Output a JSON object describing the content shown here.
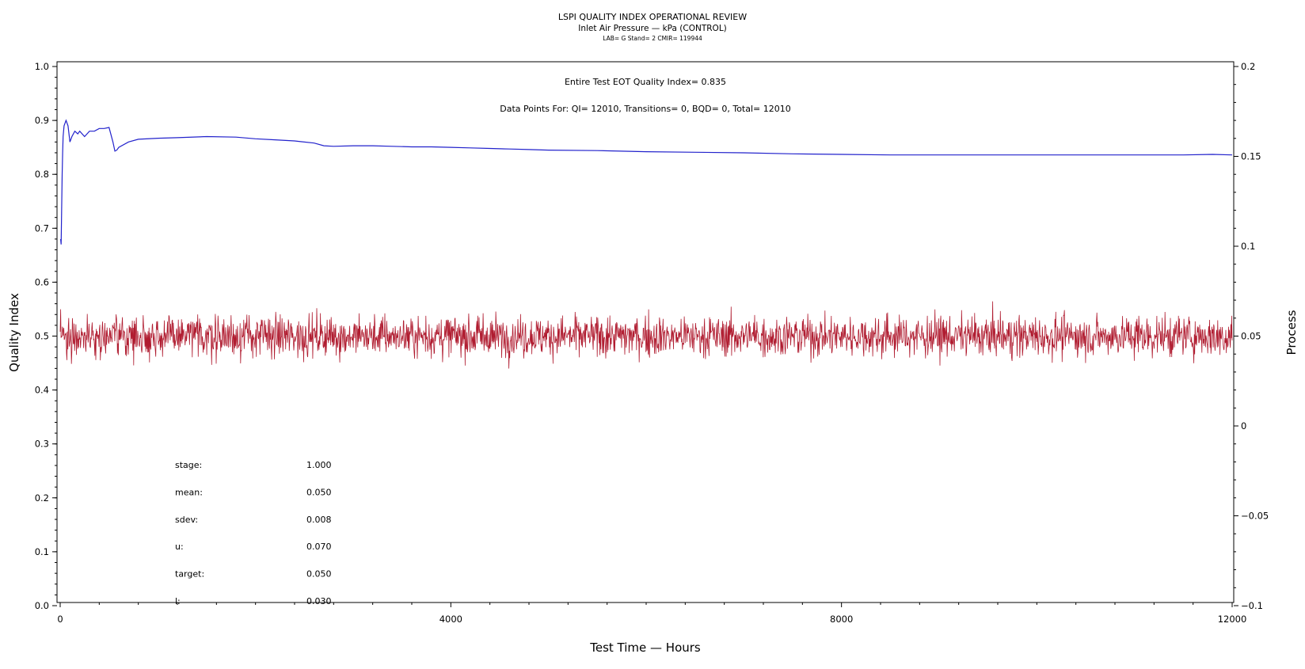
{
  "chart_data": {
    "type": "line",
    "title": "LSPI QUALITY INDEX OPERATIONAL REVIEW",
    "subtitle": "Inlet Air Pressure — kPa (CONTROL)",
    "subsubtitle": "LAB= G Stand= 2 CMIR= 119944",
    "xlabel": "Test Time — Hours",
    "ylabel": "Quality Index",
    "y2label": "Process",
    "xlim": [
      0,
      12000
    ],
    "ylim": [
      0,
      1.0
    ],
    "y2lim": [
      -0.1,
      0.2
    ],
    "x_ticks": [
      "0",
      "4000",
      "8000",
      "12000"
    ],
    "y_ticks": [
      "0.0",
      "0.1",
      "0.2",
      "0.3",
      "0.4",
      "0.5",
      "0.6",
      "0.7",
      "0.8",
      "0.9",
      "1.0"
    ],
    "y2_ticks": [
      "−0.1",
      "−0.05",
      "0",
      "0.05",
      "0.1",
      "0.15",
      "0.2"
    ],
    "annotations": {
      "eot": "Entire Test EOT Quality Index=   0.835",
      "points": "Data Points For: QI= 12010, Transitions=      0, BQD=      0, Total= 12010"
    },
    "stats": [
      {
        "label": "stage:",
        "value": "1.000"
      },
      {
        "label": "mean:",
        "value": "0.050"
      },
      {
        "label": "sdev:",
        "value": "0.008"
      },
      {
        "label": "u:",
        "value": "0.070"
      },
      {
        "label": "target:",
        "value": "0.050"
      },
      {
        "label": "l:",
        "value": "0.030"
      }
    ],
    "series": [
      {
        "axis": "left",
        "color": "#2222cc",
        "x": [
          5,
          10,
          15,
          20,
          25,
          30,
          40,
          60,
          80,
          100,
          120,
          150,
          180,
          200,
          250,
          300,
          350,
          400,
          450,
          500,
          540,
          560,
          580,
          600,
          700,
          800,
          1000,
          1200,
          1500,
          1800,
          2000,
          2200,
          2400,
          2600,
          2700,
          2800,
          3000,
          3200,
          3400,
          3600,
          3800,
          4000,
          4200,
          4400,
          4600,
          4800,
          5000,
          5500,
          6000,
          6500,
          7000,
          7500,
          8000,
          8500,
          9000,
          9500,
          10000,
          10500,
          11000,
          11500,
          11800,
          12000
        ],
        "values": [
          0.68,
          0.67,
          0.73,
          0.8,
          0.84,
          0.87,
          0.89,
          0.9,
          0.89,
          0.86,
          0.87,
          0.88,
          0.875,
          0.88,
          0.87,
          0.88,
          0.88,
          0.885,
          0.885,
          0.887,
          0.86,
          0.843,
          0.845,
          0.85,
          0.86,
          0.865,
          0.867,
          0.868,
          0.87,
          0.869,
          0.866,
          0.864,
          0.862,
          0.858,
          0.853,
          0.852,
          0.853,
          0.853,
          0.852,
          0.851,
          0.851,
          0.85,
          0.849,
          0.848,
          0.847,
          0.846,
          0.845,
          0.844,
          0.842,
          0.841,
          0.84,
          0.838,
          0.837,
          0.836,
          0.836,
          0.836,
          0.836,
          0.836,
          0.836,
          0.836,
          0.837,
          0.836
        ]
      },
      {
        "axis": "right",
        "color": "#b01c30",
        "mean": 0.05,
        "sdev": 0.008,
        "n": 12010,
        "range": [
          0.025,
          0.078
        ]
      }
    ]
  }
}
